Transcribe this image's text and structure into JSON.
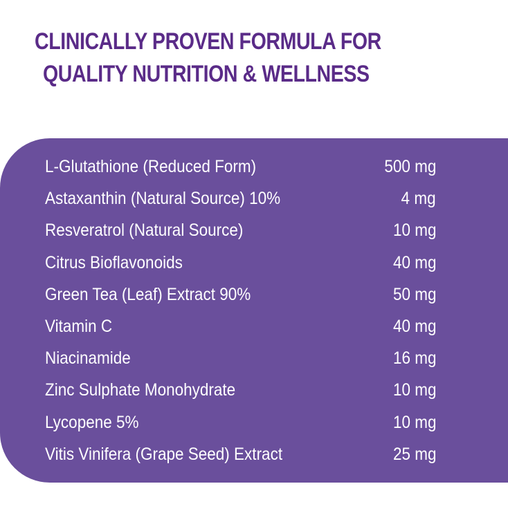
{
  "header": {
    "title_lines": [
      "CLINICALLY PROVEN FORMULA FOR",
      "QUALITY NUTRITION & WELLNESS"
    ]
  },
  "table": {
    "rows": [
      [
        "L-Glutathione (Reduced Form)",
        "500 mg"
      ],
      [
        "Astaxanthin (Natural Source) 10%",
        "4 mg"
      ],
      [
        "Resveratrol (Natural Source)",
        "10 mg"
      ],
      [
        "Citrus Bioflavonoids",
        "40 mg"
      ],
      [
        "Green Tea (Leaf) Extract 90%",
        "50 mg"
      ],
      [
        "Vitamin C",
        "40 mg"
      ],
      [
        "Niacinamide",
        "16 mg"
      ],
      [
        "Zinc Sulphate Monohydrate",
        "10 mg"
      ],
      [
        "Lycopene 5%",
        "10 mg"
      ],
      [
        "Vitis Vinifera (Grape Seed) Extract",
        "25 mg"
      ]
    ]
  }
}
